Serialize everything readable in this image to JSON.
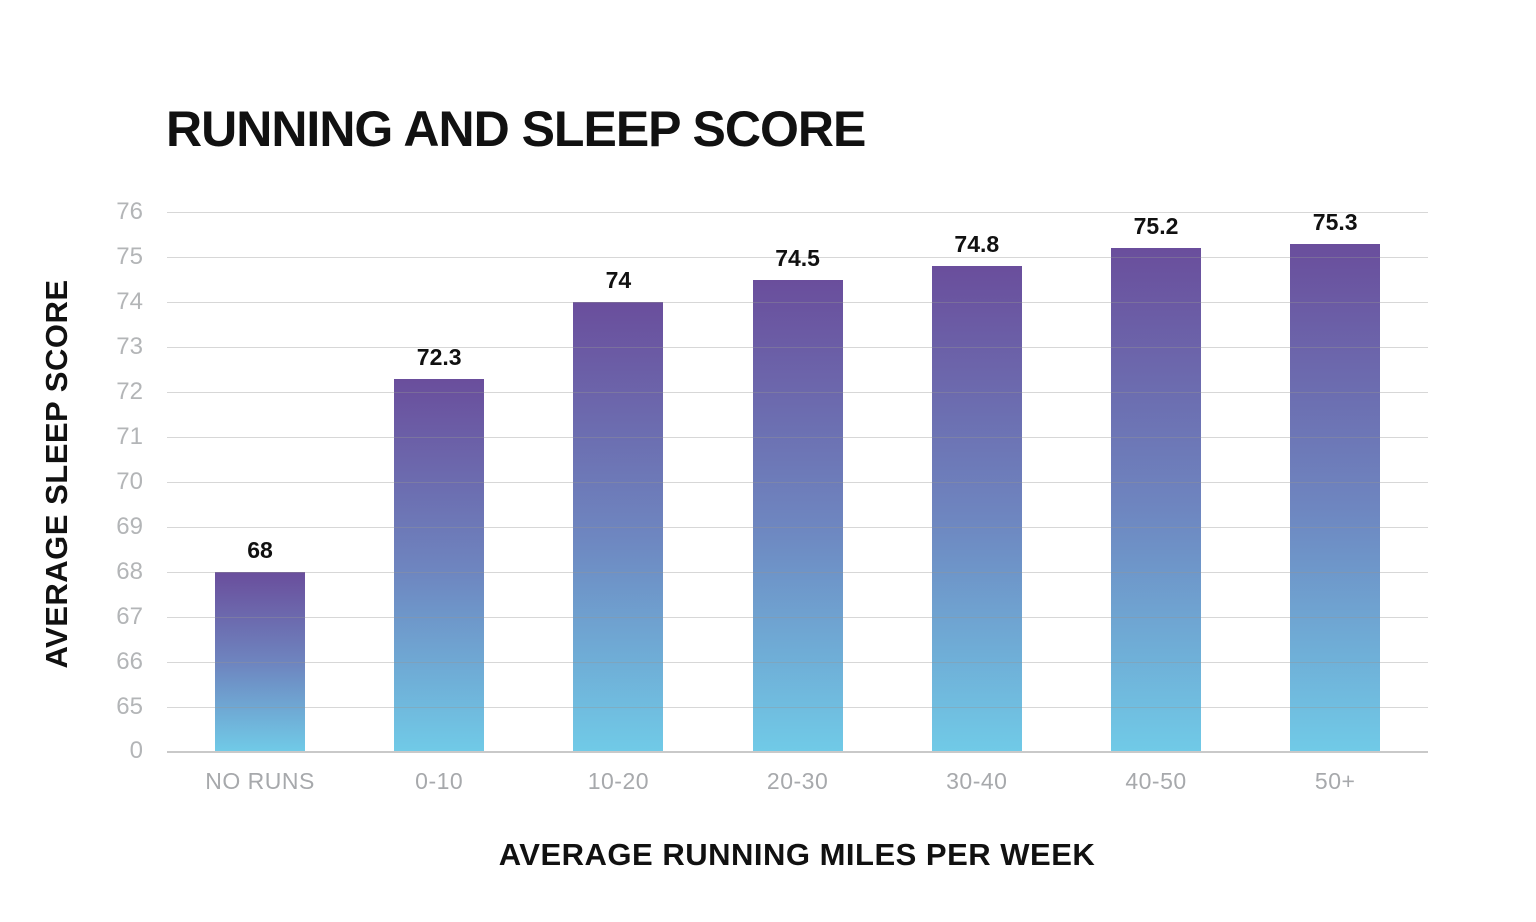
{
  "chart_data": {
    "type": "bar",
    "title": "RUNNING AND SLEEP SCORE",
    "xlabel": "AVERAGE RUNNING MILES PER WEEK",
    "ylabel": "AVERAGE SLEEP SCORE",
    "categories": [
      "NO RUNS",
      "0-10",
      "10-20",
      "20-30",
      "30-40",
      "40-50",
      "50+"
    ],
    "values": [
      68,
      72.3,
      74,
      74.5,
      74.8,
      75.2,
      75.3
    ],
    "value_labels": [
      "68",
      "72.3",
      "74",
      "74.5",
      "74.8",
      "75.2",
      "75.3"
    ],
    "ytick_values": [
      76,
      75,
      74,
      73,
      72,
      71,
      70,
      69,
      68,
      67,
      66,
      65,
      0
    ],
    "ytick_labels": [
      "76",
      "75",
      "74",
      "73",
      "72",
      "71",
      "70",
      "69",
      "68",
      "67",
      "66",
      "65",
      "0"
    ],
    "ylim_display": [
      65,
      76
    ],
    "broken_axis": true,
    "grid": true,
    "legend_position": "none",
    "bar_gradient": {
      "top": "#6a4e9c",
      "mid": "#6e86c0",
      "bottom": "#70cae7"
    },
    "colors": {
      "title": "#111111",
      "axis_title": "#111111",
      "value_label": "#111111",
      "ytick_label": "#b3b5b7",
      "category_label": "#a7a9ac",
      "gridline": "#d8d8d8",
      "background": "#ffffff"
    }
  }
}
